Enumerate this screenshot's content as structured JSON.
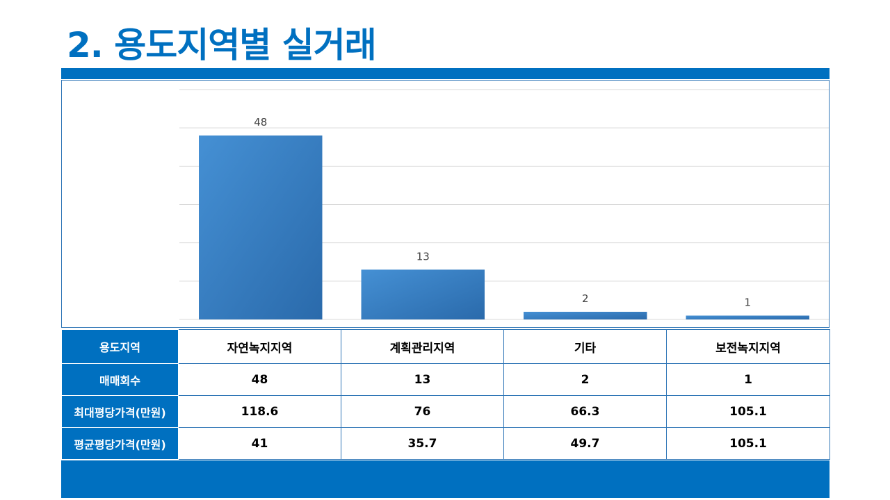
{
  "title": "2. 용도지역별 실거래",
  "colors": {
    "accent": "#0070c0",
    "bar_light": "#4590d4",
    "bar_dark": "#2a6aab"
  },
  "chart_data": {
    "type": "bar",
    "categories": [
      "자연녹지지역",
      "계획관리지역",
      "기타",
      "보전녹지지역"
    ],
    "values": [
      48,
      13,
      2,
      1
    ],
    "ylim": [
      0,
      60
    ],
    "grid": true,
    "data_labels": true
  },
  "table": {
    "header_label": "용도지역",
    "columns": [
      "자연녹지지역",
      "계획관리지역",
      "기타",
      "보전녹지지역"
    ],
    "rows": [
      {
        "label": "매매회수",
        "values": [
          "48",
          "13",
          "2",
          "1"
        ]
      },
      {
        "label": "최대평당가격(만원)",
        "values": [
          "118.6",
          "76",
          "66.3",
          "105.1"
        ]
      },
      {
        "label": "평균평당가격(만원)",
        "values": [
          "41",
          "35.7",
          "49.7",
          "105.1"
        ]
      }
    ]
  }
}
